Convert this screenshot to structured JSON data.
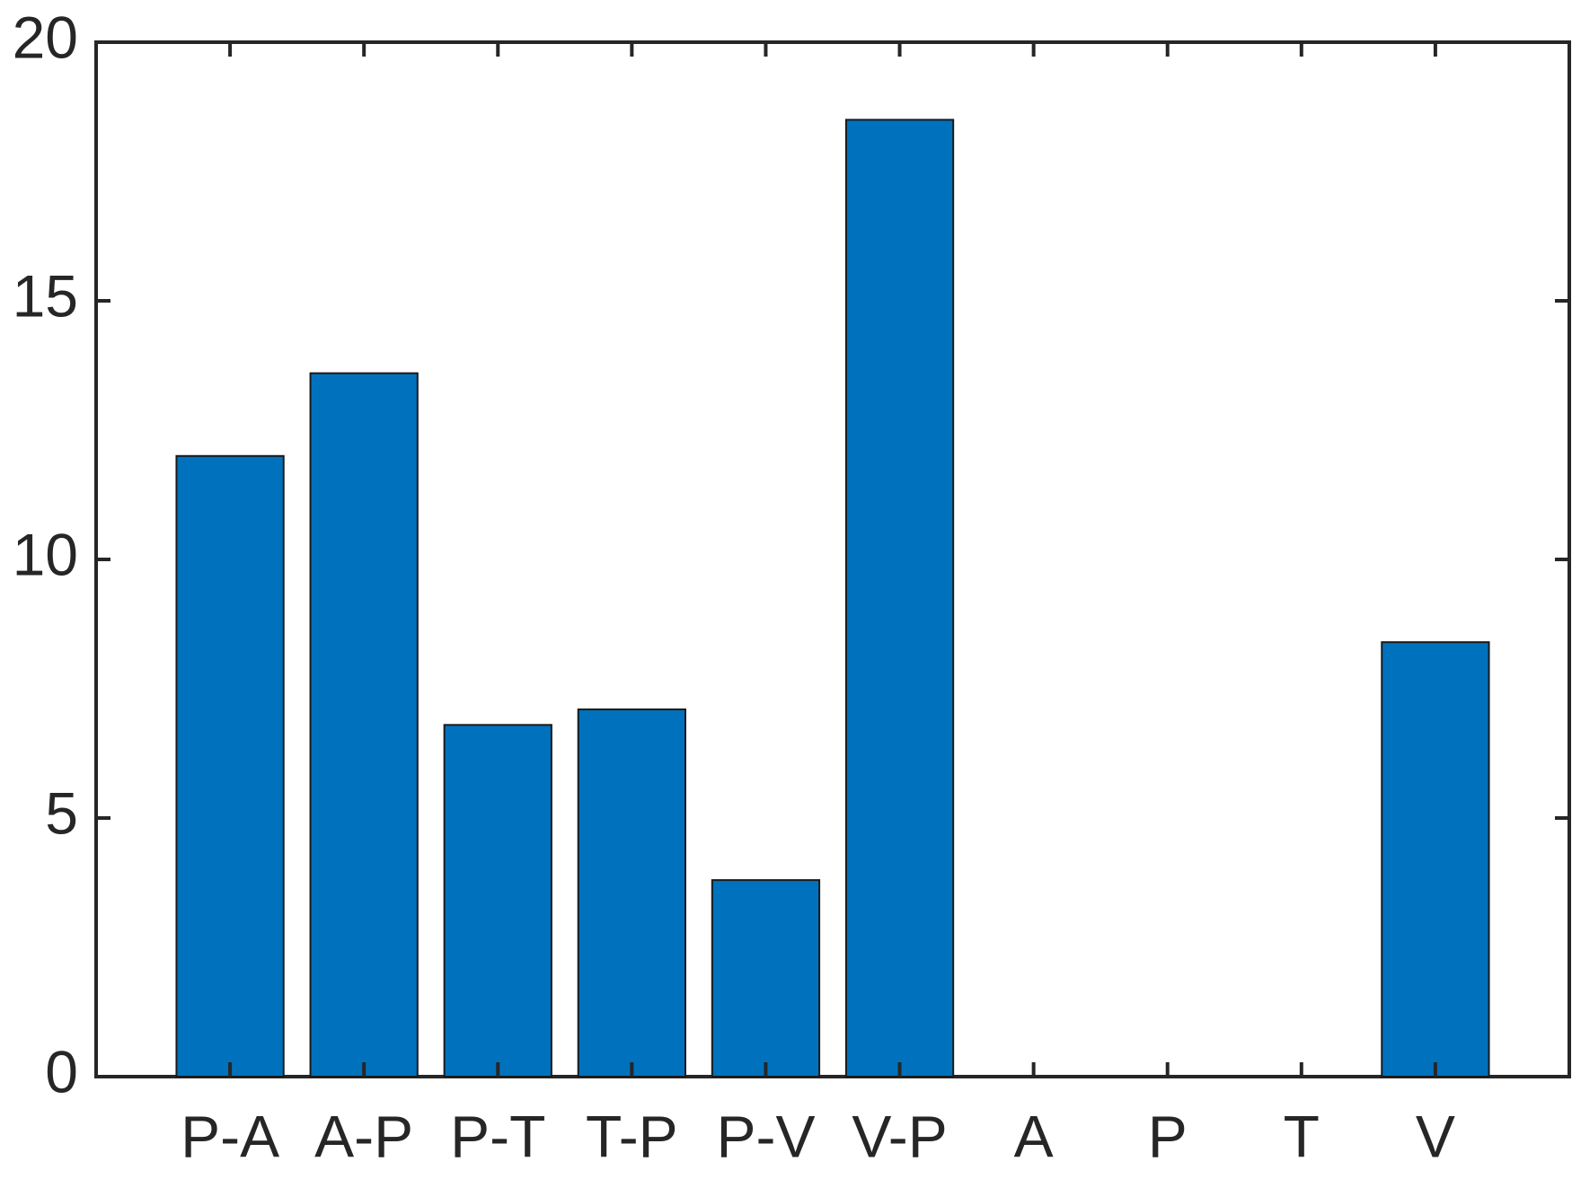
{
  "chart_data": {
    "type": "bar",
    "categories": [
      "P-A",
      "A-P",
      "P-T",
      "T-P",
      "P-V",
      "V-P",
      "A",
      "P",
      "T",
      "V"
    ],
    "values": [
      12.0,
      13.6,
      6.8,
      7.1,
      3.8,
      18.5,
      0,
      0,
      0,
      8.4
    ],
    "color": "#0072bd",
    "ylim": [
      0,
      20
    ],
    "yticks": [
      0,
      5,
      10,
      15,
      20
    ],
    "grid": false
  }
}
